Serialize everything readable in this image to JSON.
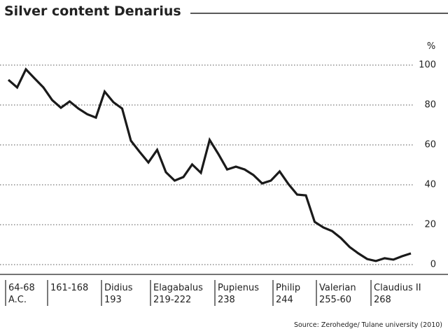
{
  "chart_data": {
    "type": "line",
    "title": "Silver content Denarius",
    "y_unit": "%",
    "source": "Source: Zerohedge/ Tulane university (2010)",
    "x_labels": [
      [
        "64-68",
        "A.C."
      ],
      [
        "161-168"
      ],
      [
        "Didius",
        "193"
      ],
      [
        "Elagabalus",
        "219-222"
      ],
      [
        "Pupienus",
        "238"
      ],
      [
        "Philip",
        "244"
      ],
      [
        "Valerian",
        "255-60"
      ],
      [
        "Claudius II",
        "268"
      ]
    ],
    "series": [
      {
        "name": "Silver content",
        "color": "#1a1a1a",
        "values": [
          92.6,
          88.8,
          97.9,
          93.3,
          88.8,
          82.5,
          78.6,
          81.8,
          78.2,
          75.4,
          73.7,
          86.7,
          81.4,
          78.2,
          62.1,
          56.5,
          51.2,
          57.5,
          46.3,
          42.1,
          43.9,
          50.2,
          46.0,
          62.5,
          55.4,
          47.7,
          49.1,
          47.7,
          44.9,
          40.7,
          42.1,
          46.7,
          40.4,
          35.1,
          34.7,
          21.4,
          18.6,
          16.8,
          13.3,
          8.8,
          5.6,
          2.8,
          1.8,
          3.2,
          2.5,
          4.2,
          5.6
        ]
      }
    ],
    "ylim": [
      0,
      100
    ],
    "yticks": [
      0,
      20,
      40,
      60,
      80,
      100
    ],
    "grid": true
  }
}
